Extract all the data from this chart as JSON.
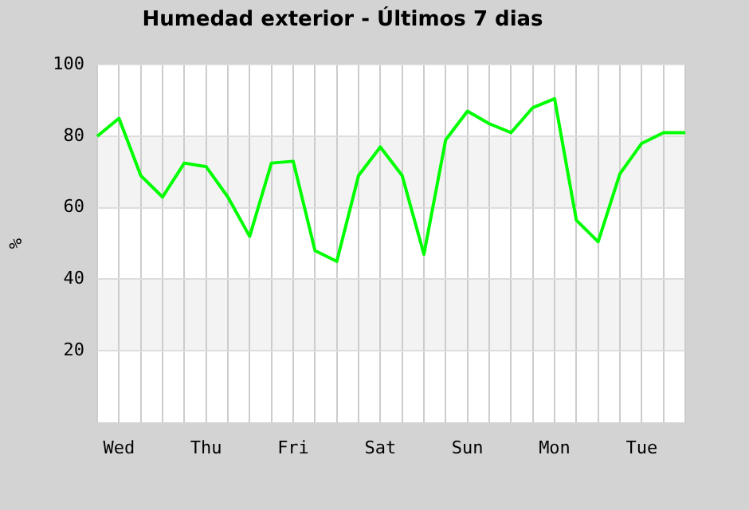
{
  "chart_data": {
    "type": "line",
    "title": "Humedad exterior - Últimos 7 dias",
    "ylabel": "%",
    "categories": [
      null,
      "Wed",
      null,
      null,
      null,
      "Thu",
      null,
      null,
      null,
      "Fri",
      null,
      null,
      null,
      "Sat",
      null,
      null,
      null,
      "Sun",
      null,
      null,
      null,
      "Mon",
      null,
      null,
      null,
      "Tue",
      null,
      null
    ],
    "series": [
      {
        "color": "#00ff00",
        "values": [
          80,
          85,
          69,
          63,
          72.5,
          71.5,
          63,
          52,
          72.5,
          73,
          48,
          45,
          69,
          77,
          69,
          47,
          79,
          87,
          83.5,
          81,
          88,
          90.5,
          56.5,
          50.5,
          69.5,
          78,
          81,
          81
        ]
      }
    ],
    "ylim": [
      0,
      100
    ],
    "yticks": [
      20,
      40,
      60,
      80,
      100
    ],
    "bands": [
      {
        "axis": "y",
        "from": 20,
        "to": 40,
        "color": "#f3f3f3"
      },
      {
        "axis": "y",
        "from": 60,
        "to": 80,
        "color": "#f3f3f3"
      }
    ],
    "grid": true,
    "legend": false,
    "marker": "none",
    "line_style": "solid"
  }
}
